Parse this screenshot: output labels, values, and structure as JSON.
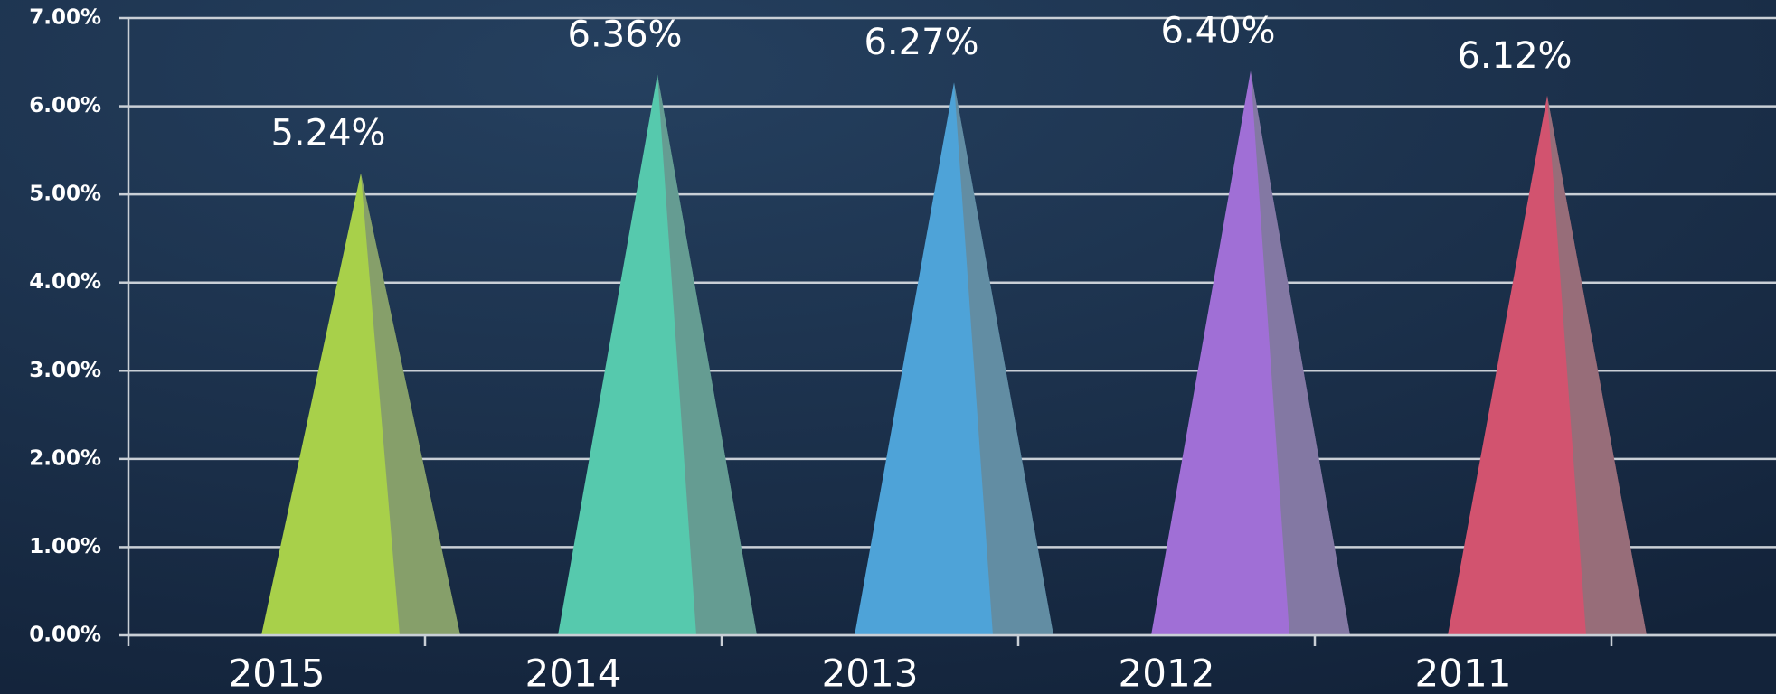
{
  "chart_data": {
    "type": "bar",
    "categories": [
      "2015",
      "2014",
      "2013",
      "2012",
      "2011"
    ],
    "values": [
      5.24,
      6.36,
      6.27,
      6.4,
      6.12
    ],
    "value_labels": [
      "5.24%",
      "6.36%",
      "6.27%",
      "6.40%",
      "6.12%"
    ],
    "colors": [
      "#a8d04a",
      "#56c9ad",
      "#4ea3d8",
      "#a06fd6",
      "#d2536f"
    ],
    "ylim": [
      0,
      7
    ],
    "yticks": [
      {
        "value": 0,
        "label": "0.00%"
      },
      {
        "value": 1,
        "label": "1.00%"
      },
      {
        "value": 2,
        "label": "2.00%"
      },
      {
        "value": 3,
        "label": "3.00%"
      },
      {
        "value": 4,
        "label": "4.00%"
      },
      {
        "value": 5,
        "label": "5.00%"
      },
      {
        "value": 6,
        "label": "6.00%"
      },
      {
        "value": 7,
        "label": "7.00%"
      }
    ],
    "grid": true
  }
}
